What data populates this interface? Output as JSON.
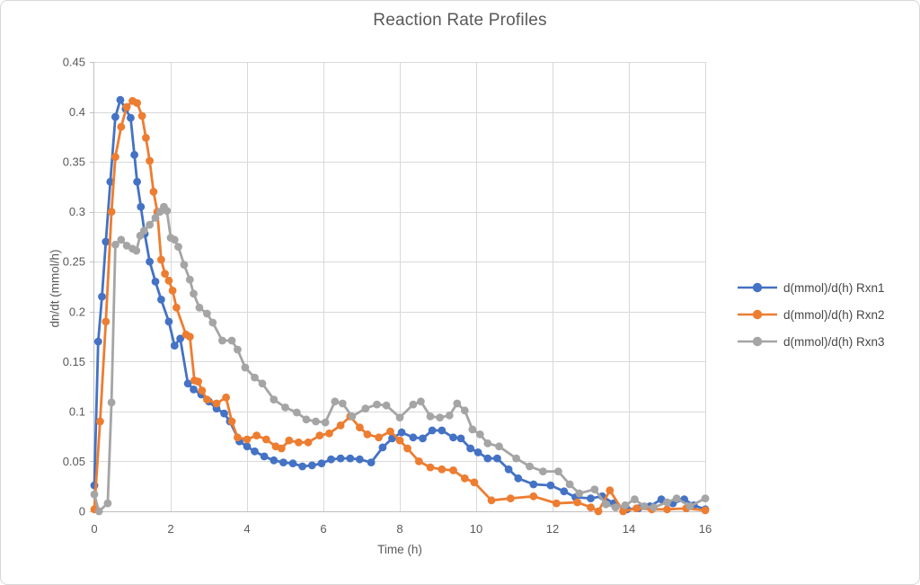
{
  "chart_data": {
    "type": "line",
    "title": "Reaction Rate Profiles",
    "xlabel": "Time (h)",
    "ylabel": "dn/dt (mmol/h)",
    "xlim": [
      0,
      16
    ],
    "ylim": [
      0,
      0.45
    ],
    "xticks": [
      0,
      2,
      4,
      6,
      8,
      10,
      12,
      14,
      16
    ],
    "yticks": [
      0,
      0.05,
      0.1,
      0.15,
      0.2,
      0.25,
      0.3,
      0.35,
      0.4,
      0.45
    ],
    "ytick_labels": [
      "0",
      "0.05",
      "0.1",
      "0.15",
      "0.2",
      "0.25",
      "0.3",
      "0.35",
      "0.4",
      "0.45"
    ],
    "grid": true,
    "legend_position": "right",
    "style": {
      "grid_color": "#D9D9D9",
      "axis_color": "#BFBFBF",
      "text_color": "#595959",
      "marker": "circle"
    },
    "series": [
      {
        "name": "d(mmol)/d(h) Rxn1",
        "color": "#4472C4",
        "points": [
          [
            0,
            0.026
          ],
          [
            0.1,
            0.17
          ],
          [
            0.2,
            0.215
          ],
          [
            0.3,
            0.27
          ],
          [
            0.42,
            0.33
          ],
          [
            0.55,
            0.395
          ],
          [
            0.68,
            0.412
          ],
          [
            0.82,
            0.403
          ],
          [
            0.95,
            0.394
          ],
          [
            1.05,
            0.357
          ],
          [
            1.12,
            0.33
          ],
          [
            1.22,
            0.305
          ],
          [
            1.32,
            0.278
          ],
          [
            1.45,
            0.25
          ],
          [
            1.6,
            0.23
          ],
          [
            1.75,
            0.212
          ],
          [
            1.95,
            0.19
          ],
          [
            2.1,
            0.166
          ],
          [
            2.25,
            0.173
          ],
          [
            2.45,
            0.128
          ],
          [
            2.6,
            0.122
          ],
          [
            2.8,
            0.117
          ],
          [
            3.0,
            0.11
          ],
          [
            3.2,
            0.103
          ],
          [
            3.4,
            0.098
          ],
          [
            3.55,
            0.09
          ],
          [
            3.8,
            0.07
          ],
          [
            4.0,
            0.065
          ],
          [
            4.2,
            0.06
          ],
          [
            4.45,
            0.055
          ],
          [
            4.7,
            0.051
          ],
          [
            4.95,
            0.049
          ],
          [
            5.2,
            0.048
          ],
          [
            5.45,
            0.045
          ],
          [
            5.7,
            0.046
          ],
          [
            5.95,
            0.048
          ],
          [
            6.2,
            0.052
          ],
          [
            6.45,
            0.053
          ],
          [
            6.7,
            0.053
          ],
          [
            6.95,
            0.052
          ],
          [
            7.25,
            0.049
          ],
          [
            7.55,
            0.064
          ],
          [
            7.8,
            0.073
          ],
          [
            8.05,
            0.079
          ],
          [
            8.35,
            0.074
          ],
          [
            8.6,
            0.073
          ],
          [
            8.85,
            0.081
          ],
          [
            9.1,
            0.081
          ],
          [
            9.4,
            0.074
          ],
          [
            9.6,
            0.073
          ],
          [
            9.85,
            0.063
          ],
          [
            10.05,
            0.059
          ],
          [
            10.3,
            0.053
          ],
          [
            10.55,
            0.053
          ],
          [
            10.85,
            0.042
          ],
          [
            11.1,
            0.033
          ],
          [
            11.5,
            0.027
          ],
          [
            11.95,
            0.026
          ],
          [
            12.3,
            0.02
          ],
          [
            12.6,
            0.014
          ],
          [
            13.0,
            0.013
          ],
          [
            13.3,
            0.015
          ],
          [
            13.6,
            0.008
          ],
          [
            13.95,
            0.002
          ],
          [
            14.25,
            0.003
          ],
          [
            14.55,
            0.005
          ],
          [
            14.85,
            0.012
          ],
          [
            15.15,
            0.008
          ],
          [
            15.45,
            0.012
          ],
          [
            15.7,
            0.006
          ],
          [
            16,
            0.002
          ]
        ]
      },
      {
        "name": "d(mmol)/d(h) Rxn2",
        "color": "#ED7D31",
        "points": [
          [
            0,
            0.002
          ],
          [
            0.15,
            0.09
          ],
          [
            0.3,
            0.19
          ],
          [
            0.45,
            0.3
          ],
          [
            0.55,
            0.355
          ],
          [
            0.7,
            0.385
          ],
          [
            0.85,
            0.405
          ],
          [
            1.0,
            0.411
          ],
          [
            1.12,
            0.409
          ],
          [
            1.25,
            0.396
          ],
          [
            1.35,
            0.374
          ],
          [
            1.45,
            0.351
          ],
          [
            1.55,
            0.32
          ],
          [
            1.65,
            0.3
          ],
          [
            1.75,
            0.252
          ],
          [
            1.85,
            0.238
          ],
          [
            1.95,
            0.231
          ],
          [
            2.05,
            0.221
          ],
          [
            2.15,
            0.204
          ],
          [
            2.4,
            0.177
          ],
          [
            2.5,
            0.175
          ],
          [
            2.62,
            0.131
          ],
          [
            2.72,
            0.13
          ],
          [
            2.82,
            0.121
          ],
          [
            2.95,
            0.112
          ],
          [
            3.2,
            0.108
          ],
          [
            3.45,
            0.114
          ],
          [
            3.6,
            0.09
          ],
          [
            3.75,
            0.074
          ],
          [
            4.0,
            0.072
          ],
          [
            4.25,
            0.076
          ],
          [
            4.5,
            0.072
          ],
          [
            4.75,
            0.065
          ],
          [
            4.9,
            0.063
          ],
          [
            5.1,
            0.071
          ],
          [
            5.35,
            0.069
          ],
          [
            5.6,
            0.069
          ],
          [
            5.9,
            0.076
          ],
          [
            6.15,
            0.078
          ],
          [
            6.45,
            0.086
          ],
          [
            6.7,
            0.095
          ],
          [
            6.95,
            0.084
          ],
          [
            7.15,
            0.077
          ],
          [
            7.45,
            0.074
          ],
          [
            7.75,
            0.08
          ],
          [
            8.0,
            0.071
          ],
          [
            8.2,
            0.063
          ],
          [
            8.5,
            0.05
          ],
          [
            8.8,
            0.044
          ],
          [
            9.1,
            0.042
          ],
          [
            9.4,
            0.041
          ],
          [
            9.7,
            0.033
          ],
          [
            9.95,
            0.029
          ],
          [
            10.4,
            0.011
          ],
          [
            10.9,
            0.013
          ],
          [
            11.5,
            0.015
          ],
          [
            12.1,
            0.008
          ],
          [
            12.65,
            0.009
          ],
          [
            13.0,
            0.004
          ],
          [
            13.2,
            0.0
          ],
          [
            13.5,
            0.021
          ],
          [
            13.85,
            0.0
          ],
          [
            14.2,
            0.003
          ],
          [
            14.6,
            0.002
          ],
          [
            15.0,
            0.002
          ],
          [
            15.5,
            0.003
          ],
          [
            16,
            0.001
          ]
        ]
      },
      {
        "name": "d(mmol)/d(h) Rxn3",
        "color": "#A5A5A5",
        "points": [
          [
            0,
            0.017
          ],
          [
            0.12,
            0.0
          ],
          [
            0.35,
            0.008
          ],
          [
            0.45,
            0.109
          ],
          [
            0.55,
            0.267
          ],
          [
            0.7,
            0.272
          ],
          [
            0.85,
            0.266
          ],
          [
            1.0,
            0.263
          ],
          [
            1.1,
            0.261
          ],
          [
            1.2,
            0.276
          ],
          [
            1.3,
            0.281
          ],
          [
            1.45,
            0.287
          ],
          [
            1.6,
            0.294
          ],
          [
            1.72,
            0.3
          ],
          [
            1.82,
            0.305
          ],
          [
            1.9,
            0.301
          ],
          [
            2.0,
            0.274
          ],
          [
            2.1,
            0.272
          ],
          [
            2.2,
            0.265
          ],
          [
            2.35,
            0.247
          ],
          [
            2.5,
            0.232
          ],
          [
            2.6,
            0.218
          ],
          [
            2.75,
            0.204
          ],
          [
            2.95,
            0.198
          ],
          [
            3.1,
            0.189
          ],
          [
            3.35,
            0.171
          ],
          [
            3.6,
            0.171
          ],
          [
            3.75,
            0.162
          ],
          [
            3.95,
            0.144
          ],
          [
            4.2,
            0.134
          ],
          [
            4.4,
            0.128
          ],
          [
            4.7,
            0.112
          ],
          [
            5.0,
            0.104
          ],
          [
            5.3,
            0.099
          ],
          [
            5.55,
            0.092
          ],
          [
            5.8,
            0.09
          ],
          [
            6.05,
            0.089
          ],
          [
            6.3,
            0.11
          ],
          [
            6.5,
            0.108
          ],
          [
            6.75,
            0.095
          ],
          [
            7.1,
            0.103
          ],
          [
            7.4,
            0.107
          ],
          [
            7.65,
            0.106
          ],
          [
            8.0,
            0.094
          ],
          [
            8.35,
            0.107
          ],
          [
            8.55,
            0.11
          ],
          [
            8.8,
            0.095
          ],
          [
            9.05,
            0.094
          ],
          [
            9.3,
            0.096
          ],
          [
            9.5,
            0.108
          ],
          [
            9.7,
            0.101
          ],
          [
            9.9,
            0.082
          ],
          [
            10.1,
            0.077
          ],
          [
            10.3,
            0.068
          ],
          [
            10.6,
            0.065
          ],
          [
            11.05,
            0.053
          ],
          [
            11.4,
            0.045
          ],
          [
            11.75,
            0.04
          ],
          [
            12.15,
            0.04
          ],
          [
            12.45,
            0.027
          ],
          [
            12.7,
            0.018
          ],
          [
            13.1,
            0.022
          ],
          [
            13.4,
            0.007
          ],
          [
            13.65,
            0.004
          ],
          [
            13.9,
            0.006
          ],
          [
            14.15,
            0.012
          ],
          [
            14.4,
            0.005
          ],
          [
            14.65,
            0.004
          ],
          [
            15.0,
            0.009
          ],
          [
            15.25,
            0.013
          ],
          [
            15.6,
            0.005
          ],
          [
            16,
            0.013
          ]
        ]
      }
    ]
  }
}
